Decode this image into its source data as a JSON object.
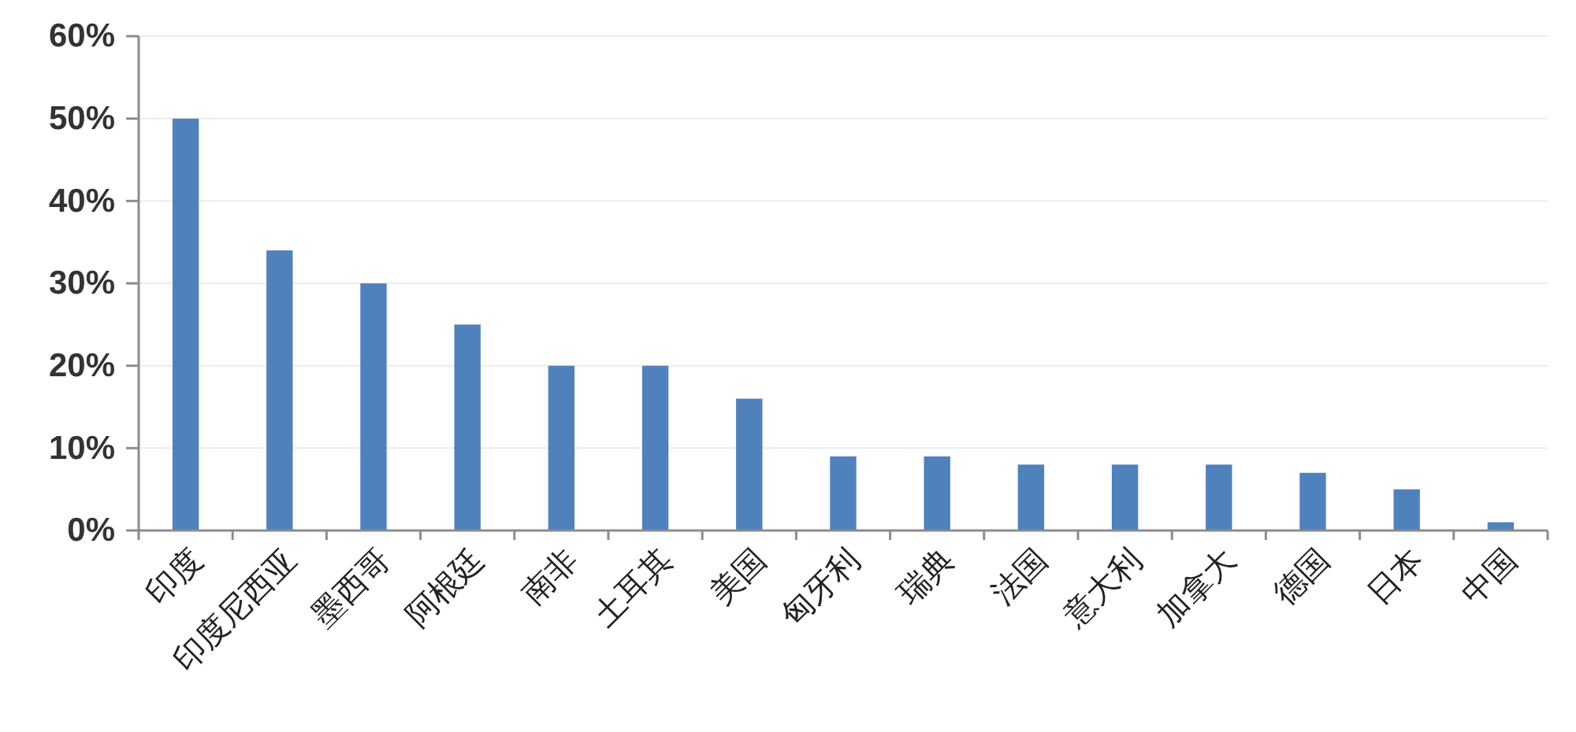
{
  "chart_data": {
    "type": "bar",
    "categories": [
      "印度",
      "印度尼西亚",
      "墨西哥",
      "阿根廷",
      "南非",
      "土耳其",
      "美国",
      "匈牙利",
      "瑞典",
      "法国",
      "意大利",
      "加拿大",
      "德国",
      "日本",
      "中国"
    ],
    "values": [
      50,
      34,
      30,
      25,
      20,
      20,
      16,
      9,
      9,
      8,
      8,
      8,
      7,
      5,
      1
    ],
    "color": "#4f81bd",
    "ylim": [
      0,
      60
    ],
    "yticks": [
      {
        "value": 0,
        "label": "0%"
      },
      {
        "value": 10,
        "label": "10%"
      },
      {
        "value": 20,
        "label": "20%"
      },
      {
        "value": 30,
        "label": "30%"
      },
      {
        "value": 40,
        "label": "40%"
      },
      {
        "value": 50,
        "label": "50%"
      },
      {
        "value": 60,
        "label": "60%"
      }
    ],
    "grid": "y"
  }
}
